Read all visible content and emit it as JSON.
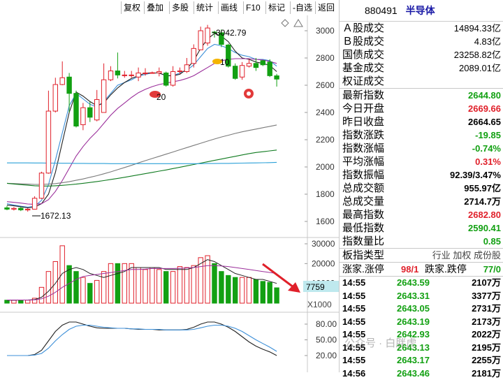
{
  "toolbar": {
    "buttons": [
      "复权",
      "叠加",
      "多股",
      "统计",
      "画线",
      "F10",
      "标记",
      "-自选",
      "返回"
    ]
  },
  "main_chart": {
    "y_ticks": [
      "3000",
      "2800",
      "2600",
      "2400",
      "2200",
      "2000",
      "1800",
      "1600"
    ],
    "high_marker": "3042.79",
    "low_marker": "1672.13",
    "marker_20": "20",
    "marker_10": "10",
    "candles": [
      {
        "o": 1700,
        "c": 1690,
        "h": 1715,
        "l": 1682
      },
      {
        "o": 1690,
        "c": 1696,
        "h": 1706,
        "l": 1680
      },
      {
        "o": 1697,
        "c": 1685,
        "h": 1706,
        "l": 1676
      },
      {
        "o": 1684,
        "c": 1690,
        "h": 1698,
        "l": 1672
      },
      {
        "o": 1690,
        "c": 1770,
        "h": 1785,
        "l": 1688
      },
      {
        "o": 1770,
        "c": 1955,
        "h": 1965,
        "l": 1765
      },
      {
        "o": 1955,
        "c": 2410,
        "h": 2560,
        "l": 1950
      },
      {
        "o": 2410,
        "c": 2605,
        "h": 2655,
        "l": 2400
      },
      {
        "o": 2605,
        "c": 2655,
        "h": 2775,
        "l": 2600
      },
      {
        "o": 2660,
        "c": 2540,
        "h": 2690,
        "l": 2400
      },
      {
        "o": 2540,
        "c": 2300,
        "h": 2560,
        "l": 2290
      },
      {
        "o": 2310,
        "c": 2435,
        "h": 2470,
        "l": 2270
      },
      {
        "o": 2435,
        "c": 2365,
        "h": 2480,
        "l": 2330
      },
      {
        "o": 2345,
        "c": 2495,
        "h": 2565,
        "l": 2335
      },
      {
        "o": 2400,
        "c": 2640,
        "h": 2760,
        "l": 2400
      },
      {
        "o": 2640,
        "c": 2705,
        "h": 2740,
        "l": 2630
      },
      {
        "o": 2705,
        "c": 2675,
        "h": 2840,
        "l": 2650
      },
      {
        "o": 2675,
        "c": 2675,
        "h": 2705,
        "l": 2655
      },
      {
        "o": 2675,
        "c": 2675,
        "h": 2705,
        "l": 2655
      },
      {
        "o": 2660,
        "c": 2690,
        "h": 2730,
        "l": 2630
      },
      {
        "o": 2690,
        "c": 2690,
        "h": 2725,
        "l": 2670
      },
      {
        "o": 2692,
        "c": 2692,
        "h": 2700,
        "l": 2685
      },
      {
        "o": 2690,
        "c": 2700,
        "h": 2730,
        "l": 2665
      },
      {
        "o": 2690,
        "c": 2600,
        "h": 2700,
        "l": 2590
      },
      {
        "o": 2600,
        "c": 2700,
        "h": 2740,
        "l": 2590
      },
      {
        "o": 2705,
        "c": 2705,
        "h": 2730,
        "l": 2680
      },
      {
        "o": 2700,
        "c": 2750,
        "h": 2800,
        "l": 2690
      },
      {
        "o": 2760,
        "c": 2870,
        "h": 2900,
        "l": 2730
      },
      {
        "o": 2860,
        "c": 3000,
        "h": 3030,
        "l": 2860
      },
      {
        "o": 2910,
        "c": 3020,
        "h": 3043,
        "l": 2890
      },
      {
        "o": 2990,
        "c": 2985,
        "h": 3000,
        "l": 2950
      },
      {
        "o": 2985,
        "c": 2900,
        "h": 3010,
        "l": 2880
      },
      {
        "o": 2895,
        "c": 2740,
        "h": 2905,
        "l": 2730
      },
      {
        "o": 2740,
        "c": 2650,
        "h": 2760,
        "l": 2640
      },
      {
        "o": 2660,
        "c": 2745,
        "h": 2770,
        "l": 2640
      },
      {
        "o": 2740,
        "c": 2760,
        "h": 2790,
        "l": 2730
      },
      {
        "o": 2760,
        "c": 2730,
        "h": 2800,
        "l": 2705
      },
      {
        "o": 2780,
        "c": 2750,
        "h": 2785,
        "l": 2740
      },
      {
        "o": 2770,
        "c": 2670,
        "h": 2790,
        "l": 2660
      },
      {
        "o": 2669,
        "c": 2645,
        "h": 2683,
        "l": 2590
      }
    ],
    "ma": [
      {
        "color": "#3c8fd8",
        "values": [
          1730,
          1720,
          1712,
          1705,
          1712,
          1755,
          1870,
          2050,
          2250,
          2450,
          2540,
          2500,
          2460,
          2440,
          2480,
          2540,
          2600,
          2620,
          2640,
          2665,
          2680,
          2690,
          2690,
          2670,
          2670,
          2690,
          2710,
          2750,
          2810,
          2870,
          2900,
          2890,
          2870,
          2840,
          2820,
          2810,
          2790,
          2790,
          2780,
          2740
        ]
      },
      {
        "color": "#222222",
        "values": [
          1720,
          1715,
          1708,
          1700,
          1705,
          1730,
          1800,
          1960,
          2180,
          2400,
          2550,
          2520,
          2480,
          2450,
          2470,
          2530,
          2580,
          2620,
          2650,
          2670,
          2690,
          2690,
          2690,
          2670,
          2670,
          2680,
          2720,
          2780,
          2870,
          2940,
          2980,
          2960,
          2920,
          2850,
          2800,
          2790,
          2770,
          2760,
          2745,
          2700
        ]
      },
      {
        "color": "#9b2f9b",
        "values": [
          1745,
          1740,
          1735,
          1728,
          1725,
          1730,
          1760,
          1820,
          1900,
          1990,
          2080,
          2150,
          2210,
          2260,
          2320,
          2380,
          2430,
          2470,
          2510,
          2545,
          2570,
          2590,
          2605,
          2615,
          2625,
          2635,
          2650,
          2670,
          2700,
          2730,
          2760,
          2780,
          2790,
          2795,
          2795,
          2795,
          2790,
          2785,
          2775,
          2760
        ]
      },
      {
        "color": "#7a7a7a",
        "values": [
          1880,
          1878,
          1876,
          1874,
          1872,
          1872,
          1874,
          1878,
          1884,
          1892,
          1902,
          1912,
          1924,
          1936,
          1950,
          1964,
          1980,
          1996,
          2012,
          2030,
          2046,
          2062,
          2078,
          2094,
          2110,
          2126,
          2142,
          2158,
          2174,
          2190,
          2205,
          2220,
          2233,
          2246,
          2258,
          2268,
          2278,
          2288,
          2298,
          2308
        ]
      },
      {
        "color": "#0f7a1f",
        "values": [
          1880,
          1875,
          1870,
          1866,
          1862,
          1860,
          1860,
          1862,
          1865,
          1869,
          1874,
          1880,
          1886,
          1893,
          1900,
          1908,
          1916,
          1924,
          1933,
          1942,
          1951,
          1960,
          1969,
          1978,
          1988,
          1998,
          2008,
          2018,
          2028,
          2038,
          2048,
          2058,
          2068,
          2078,
          2088,
          2098,
          2106,
          2112,
          2118,
          2124
        ]
      },
      {
        "color": "#2aa0d8",
        "values": [
          2030,
          2030,
          2030,
          2030,
          2029,
          2029,
          2028,
          2028,
          2027,
          2027,
          2026,
          2026,
          2025,
          2025,
          2025,
          2024,
          2024,
          2024,
          2024,
          2024,
          2024,
          2024,
          2024,
          2024,
          2024,
          2024,
          2024,
          2024,
          2024,
          2025,
          2025,
          2026,
          2026,
          2027,
          2028,
          2029,
          2030,
          2031,
          2032,
          2034
        ]
      }
    ]
  },
  "volume_panel": {
    "y_ticks": [
      "30000",
      "20000",
      "10000"
    ],
    "current_value": "7759",
    "unit": "X1000",
    "bars": [
      1.5,
      1.5,
      1.5,
      1.5,
      2.5,
      8,
      16,
      21,
      29,
      19,
      16,
      13,
      10,
      11.5,
      16,
      20,
      20,
      20,
      20,
      18,
      17,
      18,
      17,
      16,
      16,
      18.5,
      18,
      19,
      23,
      24,
      20,
      16,
      14,
      13,
      13,
      13,
      12,
      11,
      10.5,
      7.759
    ]
  },
  "macd_panel": {
    "y_ticks": [
      "80.00",
      "50.00",
      "20.00"
    ]
  },
  "info": {
    "code": "880491",
    "name": "半导体",
    "rows": [
      {
        "label": "Ａ股成交",
        "value": "14894.33亿",
        "color": "black"
      },
      {
        "label": "Ｂ股成交",
        "value": "4.83亿",
        "color": "black"
      },
      {
        "label": "国债成交",
        "value": "23258.82亿",
        "color": "black"
      },
      {
        "label": "基金成交",
        "value": "2089.01亿",
        "color": "black"
      },
      {
        "label": "权证成交",
        "value": "",
        "color": "black"
      }
    ],
    "stats": [
      {
        "label": "最新指数",
        "value": "2644.80",
        "color": "green"
      },
      {
        "label": "今日开盘",
        "value": "2669.66",
        "color": "red"
      },
      {
        "label": "昨日收盘",
        "value": "2664.65",
        "color": "black"
      },
      {
        "label": "指数涨跌",
        "value": "-19.85",
        "color": "green"
      },
      {
        "label": "指数涨幅",
        "value": "-0.74%",
        "color": "green"
      },
      {
        "label": "平均涨幅",
        "value": "0.31%",
        "color": "red"
      },
      {
        "label": "指数振幅",
        "value": "92.39/3.47%",
        "color": "black"
      },
      {
        "label": "总成交额",
        "value": "955.97亿",
        "color": "black"
      },
      {
        "label": "总成交量",
        "value": "2714.7万",
        "color": "black"
      },
      {
        "label": "最高指数",
        "value": "2682.80",
        "color": "red"
      },
      {
        "label": "最低指数",
        "value": "2590.41",
        "color": "green"
      },
      {
        "label": "指数量比",
        "value": "0.85",
        "color": "green"
      }
    ],
    "board_type_label": "板指类型",
    "board_type_value": "行业 加权 成份股",
    "up_label": "涨家.涨停",
    "up_value": "98/1",
    "down_label": "跌家.跌停",
    "down_value": "77/0",
    "ticks": [
      {
        "time": "14:55",
        "price": "2643.59",
        "vol": "2107万"
      },
      {
        "time": "14:55",
        "price": "2643.31",
        "vol": "3377万"
      },
      {
        "time": "14:55",
        "price": "2643.05",
        "vol": "2731万"
      },
      {
        "time": "14:55",
        "price": "2643.19",
        "vol": "2173万"
      },
      {
        "time": "14:55",
        "price": "2642.93",
        "vol": "2022万"
      },
      {
        "time": "14:55",
        "price": "2643.13",
        "vol": "2195万"
      },
      {
        "time": "14:55",
        "price": "2643.17",
        "vol": "2255万"
      },
      {
        "time": "14:56",
        "price": "2643.46",
        "vol": "2181万"
      }
    ]
  },
  "watermark": "公众号 · 白胖虎"
}
